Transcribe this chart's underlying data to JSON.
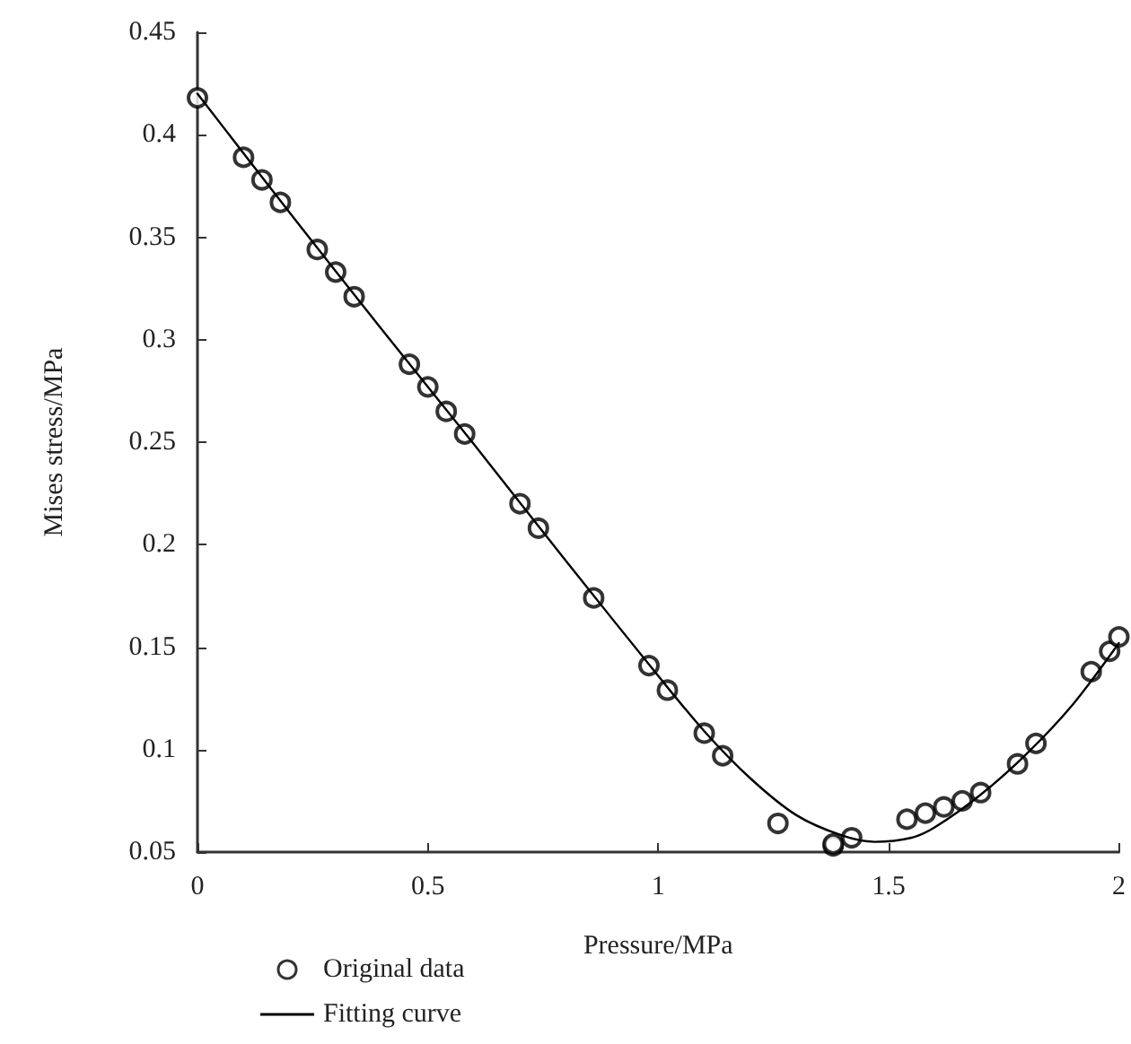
{
  "chart_data": {
    "type": "scatter",
    "xlabel": "Pressure/MPa",
    "ylabel": "Mises stress/MPa",
    "xlim": [
      0,
      2
    ],
    "xticks": [
      0,
      0.5,
      1,
      1.5,
      2
    ],
    "ylim": [
      0.05,
      0.45
    ],
    "yticks": [
      0.05,
      0.1,
      0.15,
      0.2,
      0.25,
      0.3,
      0.35,
      0.4,
      0.45
    ],
    "grid": false,
    "legend": "bottom",
    "marker": "circle",
    "series": [
      {
        "name": "Original data",
        "color": "#000000",
        "x": [
          0,
          0.1,
          0.14,
          0.18,
          0.26,
          0.3,
          0.34,
          0.46,
          0.5,
          0.54,
          0.58,
          0.7,
          0.74,
          0.86,
          0.98,
          1.02,
          1.1,
          1.14,
          1.26,
          1.38,
          1.38,
          1.42,
          1.54,
          1.58,
          1.62,
          1.66,
          1.7,
          1.78,
          1.82,
          1.94,
          1.98,
          2.0
        ],
        "values": [
          0.418,
          0.389,
          0.378,
          0.367,
          0.344,
          0.333,
          0.321,
          0.288,
          0.277,
          0.265,
          0.254,
          0.22,
          0.208,
          0.174,
          0.141,
          0.129,
          0.108,
          0.097,
          0.064,
          0.053,
          0.054,
          0.057,
          0.066,
          0.069,
          0.072,
          0.075,
          0.079,
          0.093,
          0.103,
          0.138,
          0.148,
          0.155
        ]
      },
      {
        "name": "Fitting curve",
        "type": "line",
        "color": "#000000",
        "marker": "none",
        "line_style": "solid",
        "x": [
          0,
          0.2,
          0.4,
          0.6,
          0.8,
          1.0,
          1.1,
          1.2,
          1.3,
          1.4,
          1.47,
          1.55,
          1.6,
          1.7,
          1.8,
          1.9,
          2.0
        ],
        "values": [
          0.42,
          0.362,
          0.305,
          0.249,
          0.192,
          0.136,
          0.109,
          0.086,
          0.068,
          0.058,
          0.055,
          0.057,
          0.062,
          0.078,
          0.098,
          0.122,
          0.152
        ]
      }
    ]
  }
}
